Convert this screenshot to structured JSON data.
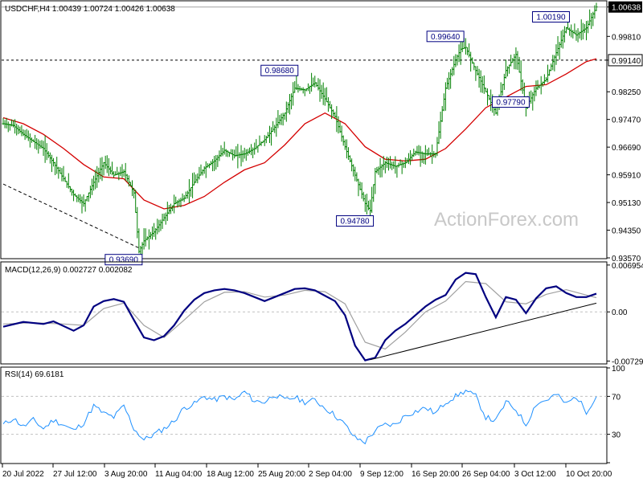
{
  "chart_data": {
    "type": "line",
    "watermark": "ActionForex.com",
    "x_tick_labels": [
      "20 Jul 2022",
      "27 Jul 12:00",
      "3 Aug 20:00",
      "11 Aug 04:00",
      "18 Aug 12:00",
      "25 Aug 20:00",
      "2 Sep 04:00",
      "9 Sep 12:00",
      "16 Sep 20:00",
      "26 Sep 04:00",
      "3 Oct 12:00",
      "10 Oct 20:00"
    ],
    "panels": [
      {
        "id": "price",
        "title": "USDCHF,H4  1.00439 1.00724 1.00426 1.00638",
        "series": [
          {
            "name": "USDCHF,H4",
            "style": "bars",
            "color": "#008000"
          },
          {
            "style": "ma",
            "color": "#d40000"
          }
        ],
        "ylim": [
          0.9357,
          1.0079
        ],
        "y_ticks": [
          "1.00638",
          "0.99810",
          "0.99140",
          "0.98250",
          "0.97470",
          "0.96690",
          "0.95910",
          "0.95130",
          "0.94350",
          "0.93570"
        ],
        "y_tick_values": [
          1.00638,
          0.9981,
          0.9914,
          0.9825,
          0.9747,
          0.9669,
          0.9591,
          0.9513,
          0.9435,
          0.9357
        ],
        "current_price": "1.00638",
        "horizontal_level": {
          "label": "0.99140",
          "value": 0.9914
        },
        "annotations": [
          {
            "label": "0.93690",
            "x": 27,
            "y": 0.9369
          },
          {
            "label": "0.98680",
            "x": 58,
            "y": 0.9868
          },
          {
            "label": "0.94780",
            "x": 73,
            "y": 0.9478
          },
          {
            "label": "0.99640",
            "x": 91,
            "y": 0.9964
          },
          {
            "label": "0.97790",
            "x": 104,
            "y": 0.9779
          },
          {
            "label": "1.00190",
            "x": 112,
            "y": 1.0019
          }
        ],
        "close_points": [
          [
            0,
            0.9735
          ],
          [
            2,
            0.973
          ],
          [
            4,
            0.9705
          ],
          [
            6,
            0.9685
          ],
          [
            8,
            0.9665
          ],
          [
            10,
            0.9625
          ],
          [
            12,
            0.958
          ],
          [
            14,
            0.9535
          ],
          [
            16,
            0.951
          ],
          [
            18,
            0.957
          ],
          [
            20,
            0.9625
          ],
          [
            22,
            0.959
          ],
          [
            24,
            0.96
          ],
          [
            26,
            0.954
          ],
          [
            27,
            0.9375
          ],
          [
            28,
            0.9405
          ],
          [
            30,
            0.943
          ],
          [
            32,
            0.947
          ],
          [
            34,
            0.951
          ],
          [
            36,
            0.9525
          ],
          [
            38,
            0.957
          ],
          [
            40,
            0.961
          ],
          [
            42,
            0.963
          ],
          [
            44,
            0.966
          ],
          [
            46,
            0.9645
          ],
          [
            48,
            0.965
          ],
          [
            50,
            0.9665
          ],
          [
            52,
            0.969
          ],
          [
            54,
            0.9725
          ],
          [
            56,
            0.9765
          ],
          [
            58,
            0.9835
          ],
          [
            60,
            0.983
          ],
          [
            62,
            0.985
          ],
          [
            64,
            0.9805
          ],
          [
            66,
            0.9755
          ],
          [
            68,
            0.967
          ],
          [
            70,
            0.959
          ],
          [
            72,
            0.951
          ],
          [
            73,
            0.949
          ],
          [
            74,
            0.96
          ],
          [
            76,
            0.9625
          ],
          [
            78,
            0.9615
          ],
          [
            80,
            0.9625
          ],
          [
            82,
            0.9655
          ],
          [
            84,
            0.965
          ],
          [
            86,
            0.965
          ],
          [
            88,
            0.9835
          ],
          [
            90,
            0.9915
          ],
          [
            91,
            0.9945
          ],
          [
            92,
            0.995
          ],
          [
            94,
            0.9885
          ],
          [
            96,
            0.9825
          ],
          [
            98,
            0.9765
          ],
          [
            100,
            0.9885
          ],
          [
            102,
            0.993
          ],
          [
            104,
            0.978
          ],
          [
            106,
            0.9835
          ],
          [
            108,
            0.986
          ],
          [
            110,
            0.9935
          ],
          [
            112,
            1.0005
          ],
          [
            114,
            0.9985
          ],
          [
            116,
            1.0005
          ],
          [
            118,
            1.0064
          ]
        ],
        "ma_points": [
          [
            0,
            0.9752
          ],
          [
            4,
            0.9735
          ],
          [
            8,
            0.9705
          ],
          [
            12,
            0.9665
          ],
          [
            16,
            0.962
          ],
          [
            20,
            0.9585
          ],
          [
            24,
            0.958
          ],
          [
            28,
            0.952
          ],
          [
            32,
            0.9495
          ],
          [
            36,
            0.9505
          ],
          [
            40,
            0.953
          ],
          [
            44,
            0.957
          ],
          [
            48,
            0.9605
          ],
          [
            52,
            0.9625
          ],
          [
            56,
            0.9675
          ],
          [
            60,
            0.9735
          ],
          [
            64,
            0.9765
          ],
          [
            68,
            0.9735
          ],
          [
            72,
            0.967
          ],
          [
            76,
            0.9635
          ],
          [
            80,
            0.963
          ],
          [
            84,
            0.9635
          ],
          [
            88,
            0.9665
          ],
          [
            92,
            0.972
          ],
          [
            96,
            0.978
          ],
          [
            100,
            0.981
          ],
          [
            104,
            0.984
          ],
          [
            108,
            0.9845
          ],
          [
            112,
            0.9875
          ],
          [
            116,
            0.991
          ],
          [
            118,
            0.9918
          ]
        ],
        "trendline": [
          [
            0,
            0.9565
          ],
          [
            27,
            0.9385
          ]
        ]
      },
      {
        "id": "macd",
        "title": "MACD(12,26,9) 0.002727 0.002082",
        "ylim": [
          -0.0076,
          0.0073
        ],
        "y_ticks": [
          "0.006954",
          "0.00",
          "-0.007294"
        ],
        "y_tick_values": [
          0.006954,
          0.0,
          -0.007294
        ],
        "series": [
          {
            "style": "macd",
            "color": "#000080"
          },
          {
            "style": "signal",
            "color": "#a0a0a0"
          }
        ],
        "macd_points": [
          [
            0,
            -0.0022
          ],
          [
            4,
            -0.0015
          ],
          [
            8,
            -0.0018
          ],
          [
            10,
            -0.0014
          ],
          [
            14,
            -0.0028
          ],
          [
            16,
            -0.002
          ],
          [
            18,
            0.0008
          ],
          [
            20,
            0.0016
          ],
          [
            22,
            0.0019
          ],
          [
            24,
            0.0015
          ],
          [
            26,
            -0.0012
          ],
          [
            28,
            -0.0038
          ],
          [
            30,
            -0.0042
          ],
          [
            32,
            -0.0036
          ],
          [
            34,
            -0.002
          ],
          [
            36,
            0.0002
          ],
          [
            38,
            0.0018
          ],
          [
            40,
            0.0028
          ],
          [
            42,
            0.0032
          ],
          [
            44,
            0.0034
          ],
          [
            46,
            0.0032
          ],
          [
            48,
            0.0028
          ],
          [
            50,
            0.0022
          ],
          [
            52,
            0.0016
          ],
          [
            54,
            0.0022
          ],
          [
            56,
            0.0028
          ],
          [
            58,
            0.0034
          ],
          [
            60,
            0.0035
          ],
          [
            62,
            0.0032
          ],
          [
            64,
            0.0024
          ],
          [
            66,
            0.0016
          ],
          [
            68,
            -0.0005
          ],
          [
            70,
            -0.005
          ],
          [
            72,
            -0.0072
          ],
          [
            74,
            -0.0068
          ],
          [
            76,
            -0.0042
          ],
          [
            78,
            -0.0028
          ],
          [
            80,
            -0.0018
          ],
          [
            82,
            -0.0005
          ],
          [
            84,
            0.0008
          ],
          [
            86,
            0.0018
          ],
          [
            88,
            0.0025
          ],
          [
            90,
            0.0048
          ],
          [
            92,
            0.0058
          ],
          [
            94,
            0.0056
          ],
          [
            96,
            0.0022
          ],
          [
            98,
            -0.0008
          ],
          [
            100,
            0.0022
          ],
          [
            102,
            0.0018
          ],
          [
            104,
            -0.0002
          ],
          [
            106,
            0.002
          ],
          [
            108,
            0.0035
          ],
          [
            110,
            0.0038
          ],
          [
            112,
            0.0028
          ],
          [
            114,
            0.0022
          ],
          [
            116,
            0.0022
          ],
          [
            118,
            0.0027
          ]
        ],
        "signal_points": [
          [
            0,
            -0.0018
          ],
          [
            6,
            -0.0016
          ],
          [
            12,
            -0.0018
          ],
          [
            16,
            -0.002
          ],
          [
            20,
            0.0005
          ],
          [
            24,
            0.0013
          ],
          [
            28,
            -0.002
          ],
          [
            32,
            -0.0038
          ],
          [
            36,
            -0.0012
          ],
          [
            40,
            0.0015
          ],
          [
            44,
            0.0029
          ],
          [
            48,
            0.003
          ],
          [
            52,
            0.0022
          ],
          [
            56,
            0.0025
          ],
          [
            60,
            0.0032
          ],
          [
            64,
            0.003
          ],
          [
            68,
            0.0012
          ],
          [
            72,
            -0.0045
          ],
          [
            76,
            -0.0055
          ],
          [
            80,
            -0.003
          ],
          [
            84,
            0.0
          ],
          [
            88,
            0.0016
          ],
          [
            92,
            0.0045
          ],
          [
            96,
            0.0042
          ],
          [
            100,
            0.0015
          ],
          [
            104,
            0.0012
          ],
          [
            108,
            0.0026
          ],
          [
            112,
            0.0033
          ],
          [
            116,
            0.0025
          ],
          [
            118,
            0.0021
          ]
        ],
        "trendline": [
          [
            73,
            -0.0071
          ],
          [
            118,
            0.0013
          ]
        ]
      },
      {
        "id": "rsi",
        "title": "RSI(14) 69.6181",
        "ylim": [
          0,
          100
        ],
        "y_ticks": [
          "100",
          "70",
          "30",
          "0"
        ],
        "y_tick_values": [
          100,
          70,
          30,
          0
        ],
        "series": [
          {
            "style": "rsi",
            "color": "#1e90ff"
          }
        ],
        "rsi_points": [
          [
            0,
            40
          ],
          [
            2,
            47
          ],
          [
            4,
            38
          ],
          [
            6,
            45
          ],
          [
            8,
            36
          ],
          [
            10,
            45
          ],
          [
            12,
            40
          ],
          [
            14,
            34
          ],
          [
            16,
            42
          ],
          [
            18,
            60
          ],
          [
            20,
            52
          ],
          [
            22,
            48
          ],
          [
            24,
            60
          ],
          [
            26,
            36
          ],
          [
            28,
            24
          ],
          [
            30,
            30
          ],
          [
            32,
            36
          ],
          [
            34,
            44
          ],
          [
            36,
            58
          ],
          [
            38,
            62
          ],
          [
            40,
            70
          ],
          [
            42,
            66
          ],
          [
            44,
            70
          ],
          [
            46,
            66
          ],
          [
            48,
            75
          ],
          [
            50,
            65
          ],
          [
            52,
            64
          ],
          [
            54,
            72
          ],
          [
            56,
            66
          ],
          [
            58,
            69
          ],
          [
            60,
            64
          ],
          [
            62,
            66
          ],
          [
            64,
            58
          ],
          [
            66,
            50
          ],
          [
            68,
            40
          ],
          [
            70,
            26
          ],
          [
            72,
            22
          ],
          [
            74,
            34
          ],
          [
            76,
            40
          ],
          [
            78,
            40
          ],
          [
            80,
            50
          ],
          [
            82,
            54
          ],
          [
            84,
            58
          ],
          [
            86,
            52
          ],
          [
            88,
            64
          ],
          [
            90,
            70
          ],
          [
            92,
            76
          ],
          [
            94,
            70
          ],
          [
            96,
            48
          ],
          [
            98,
            44
          ],
          [
            100,
            64
          ],
          [
            102,
            56
          ],
          [
            104,
            40
          ],
          [
            106,
            62
          ],
          [
            108,
            66
          ],
          [
            110,
            72
          ],
          [
            112,
            62
          ],
          [
            114,
            70
          ],
          [
            116,
            54
          ],
          [
            118,
            70
          ]
        ]
      }
    ]
  }
}
